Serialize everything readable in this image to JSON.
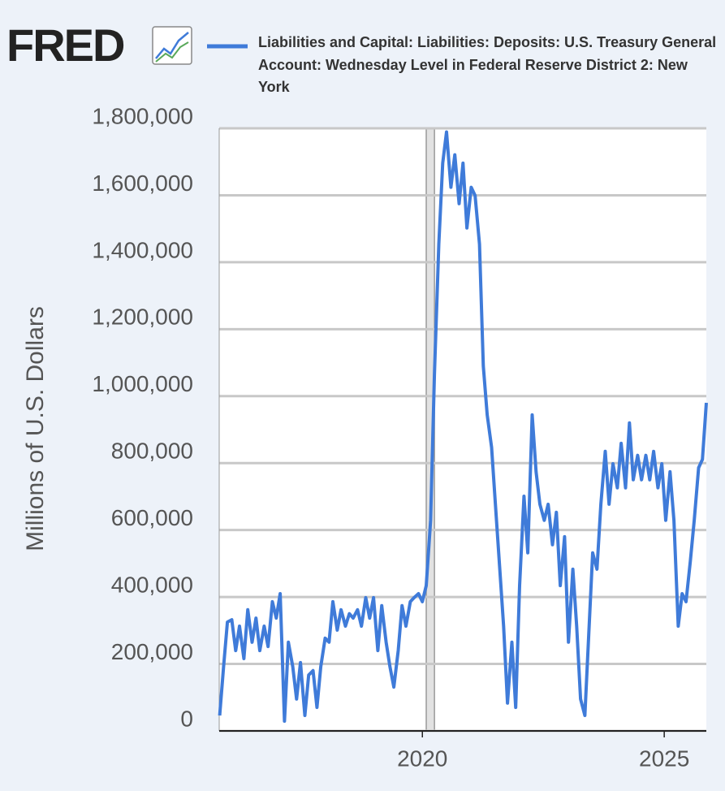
{
  "chart_data": {
    "type": "line",
    "logo": "FRED",
    "y_label": "Millions of U.S. Dollars",
    "grid": true,
    "xlim": [
      2015.8,
      2025.87
    ],
    "ylim": [
      0,
      1800000
    ],
    "xticks": [
      2020,
      2025
    ],
    "yticks": [
      0,
      {
        "value": 200000,
        "label": "200,000"
      },
      {
        "value": 400000,
        "label": "400,000"
      },
      {
        "value": 600000,
        "label": "600,000"
      },
      {
        "value": 800000,
        "label": "800,000"
      },
      {
        "value": 1000000,
        "label": "1,000,000"
      },
      {
        "value": 1200000,
        "label": "1,200,000"
      },
      {
        "value": 1400000,
        "label": "1,400,000"
      },
      {
        "value": 1600000,
        "label": "1,600,000"
      },
      {
        "value": 1800000,
        "label": "1,800,000"
      }
    ],
    "shaded_periods": [
      [
        2020.08,
        2020.25
      ]
    ],
    "x": [
      2015.81,
      2015.89,
      2015.97,
      2016.06,
      2016.14,
      2016.22,
      2016.31,
      2016.39,
      2016.48,
      2016.56,
      2016.64,
      2016.73,
      2016.81,
      2016.9,
      2016.98,
      2017.06,
      2017.15,
      2017.23,
      2017.32,
      2017.4,
      2017.48,
      2017.57,
      2017.65,
      2017.74,
      2017.82,
      2017.9,
      2017.99,
      2018.07,
      2018.15,
      2018.24,
      2018.32,
      2018.41,
      2018.49,
      2018.57,
      2018.66,
      2018.74,
      2018.83,
      2018.91,
      2018.99,
      2019.08,
      2019.16,
      2019.25,
      2019.33,
      2019.41,
      2019.5,
      2019.58,
      2019.66,
      2019.75,
      2019.83,
      2019.92,
      2020.0,
      2020.08,
      2020.17,
      2020.25,
      2020.34,
      2020.42,
      2020.5,
      2020.59,
      2020.67,
      2020.76,
      2020.84,
      2020.92,
      2021.01,
      2021.09,
      2021.18,
      2021.26,
      2021.34,
      2021.43,
      2021.51,
      2021.6,
      2021.68,
      2021.76,
      2021.85,
      2021.93,
      2022.01,
      2022.1,
      2022.18,
      2022.27,
      2022.35,
      2022.43,
      2022.52,
      2022.6,
      2022.69,
      2022.77,
      2022.85,
      2022.94,
      2023.02,
      2023.11,
      2023.19,
      2023.27,
      2023.36,
      2023.44,
      2023.52,
      2023.61,
      2023.69,
      2023.78,
      2023.86,
      2023.94,
      2024.03,
      2024.11,
      2024.2,
      2024.28,
      2024.36,
      2024.45,
      2024.53,
      2024.62,
      2024.7,
      2024.78,
      2024.87,
      2024.95,
      2025.03,
      2025.12,
      2025.2,
      2025.29,
      2025.37,
      2025.45,
      2025.54,
      2025.62,
      2025.71,
      2025.79,
      2025.87
    ],
    "series": [
      {
        "name": "Liabilities and Capital: Liabilities: Deposits: U.S. Treasury General Account: Wednesday Level in Federal Reserve District 2: New York",
        "color": "#3f7bd9",
        "values": [
          46000,
          192000,
          325000,
          332000,
          240000,
          313000,
          216000,
          362000,
          265000,
          337000,
          240000,
          313000,
          252000,
          386000,
          337000,
          410000,
          29000,
          265000,
          192000,
          95000,
          204000,
          46000,
          167000,
          180000,
          70000,
          192000,
          277000,
          265000,
          386000,
          301000,
          362000,
          313000,
          350000,
          337000,
          362000,
          313000,
          398000,
          337000,
          398000,
          240000,
          374000,
          265000,
          192000,
          131000,
          240000,
          374000,
          313000,
          386000,
          398000,
          410000,
          386000,
          434000,
          629000,
          1065000,
          1454000,
          1696000,
          1789000,
          1624000,
          1721000,
          1575000,
          1696000,
          1502000,
          1624000,
          1599000,
          1454000,
          1090000,
          944000,
          847000,
          677000,
          483000,
          313000,
          83000,
          265000,
          70000,
          434000,
          701000,
          532000,
          944000,
          774000,
          677000,
          629000,
          677000,
          556000,
          653000,
          434000,
          580000,
          265000,
          483000,
          313000,
          95000,
          46000,
          289000,
          532000,
          483000,
          677000,
          835000,
          677000,
          798000,
          726000,
          859000,
          726000,
          920000,
          750000,
          823000,
          750000,
          823000,
          750000,
          835000,
          726000,
          798000,
          629000,
          774000,
          629000,
          313000,
          410000,
          386000,
          507000,
          629000,
          786000,
          811000,
          980000
        ]
      }
    ]
  }
}
